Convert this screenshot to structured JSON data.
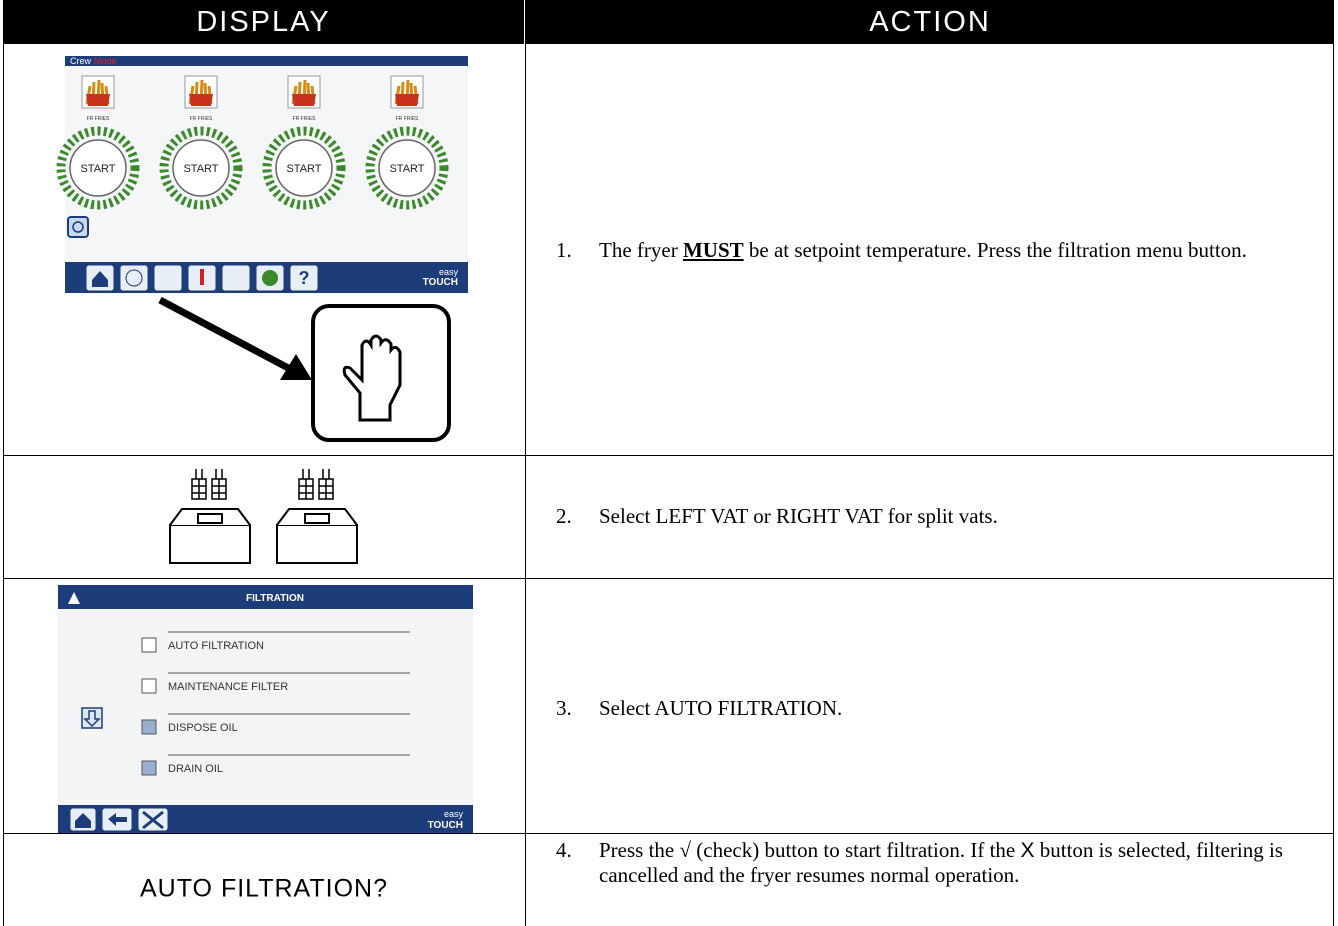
{
  "header": {
    "display": "DISPLAY",
    "action": "ACTION"
  },
  "rows": [
    {
      "display": {
        "mode_left": "Crew",
        "mode_right": "Mode",
        "products": [
          "FR FRIES",
          "FR FRIES",
          "FR FRIES",
          "FR FRIES"
        ],
        "buttons": [
          "START",
          "START",
          "START",
          "START"
        ],
        "help": "?",
        "brand_top": "easy",
        "brand_bottom": "TOUCH"
      },
      "action": {
        "number": "1.",
        "before": "The fryer ",
        "emphasis": "MUST",
        "after": " be at setpoint temperature. Press the filtration menu button."
      }
    },
    {
      "action": {
        "number": "2.",
        "text": "Select LEFT VAT or RIGHT VAT for split vats."
      }
    },
    {
      "display": {
        "title": "FILTRATION",
        "items": [
          "AUTO FILTRATION",
          "MAINTENANCE FILTER",
          "DISPOSE OIL",
          "DRAIN OIL"
        ],
        "brand_top": "easy",
        "brand_bottom": "TOUCH"
      },
      "action": {
        "number": "3.",
        "text": "Select AUTO FILTRATION."
      }
    },
    {
      "display": {
        "text": "AUTO FILTRATION?"
      },
      "action": {
        "number": "4.",
        "before": "Press the √ (check) button to start filtration. If the ",
        "symbol": "X",
        "after": " button is selected, filtering is cancelled and the fryer resumes normal operation."
      }
    }
  ]
}
